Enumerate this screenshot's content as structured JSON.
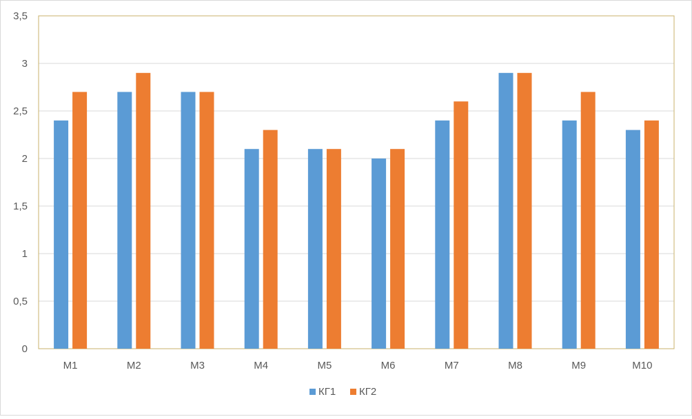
{
  "chart_data": {
    "type": "bar",
    "title": "",
    "xlabel": "",
    "ylabel": "",
    "categories": [
      "М1",
      "М2",
      "М3",
      "М4",
      "М5",
      "М6",
      "М7",
      "М8",
      "М9",
      "М10"
    ],
    "series": [
      {
        "name": "КГ1",
        "color": "#5B9BD5",
        "values": [
          2.4,
          2.7,
          2.7,
          2.1,
          2.1,
          2.0,
          2.4,
          2.9,
          2.4,
          2.3
        ]
      },
      {
        "name": "КГ2",
        "color": "#ED7D31",
        "values": [
          2.7,
          2.9,
          2.7,
          2.3,
          2.1,
          2.1,
          2.6,
          2.9,
          2.7,
          2.4
        ]
      }
    ],
    "ylim": [
      0,
      3.5
    ],
    "yticks": [
      "0",
      "0,5",
      "1",
      "1,5",
      "2",
      "2,5",
      "3",
      "3,5"
    ],
    "grid": true,
    "legend": "bottom-center",
    "plot_border_color": "#C9B26B"
  }
}
